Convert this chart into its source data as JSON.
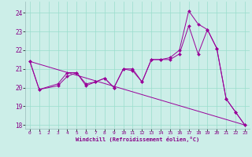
{
  "xlabel": "Windchill (Refroidissement éolien,°C)",
  "bg_color": "#cceee8",
  "grid_color": "#99ddcc",
  "line_color": "#990099",
  "xlim": [
    -0.5,
    23.5
  ],
  "ylim": [
    17.8,
    24.6
  ],
  "yticks": [
    18,
    19,
    20,
    21,
    22,
    23,
    24
  ],
  "xticks": [
    0,
    1,
    2,
    3,
    4,
    5,
    6,
    7,
    8,
    9,
    10,
    11,
    12,
    13,
    14,
    15,
    16,
    17,
    18,
    19,
    20,
    21,
    22,
    23
  ],
  "lines": [
    {
      "x": [
        0,
        1,
        3,
        4,
        5,
        6,
        7,
        8,
        9,
        10,
        11,
        12,
        13,
        14,
        15,
        16,
        17,
        18,
        19,
        20,
        21,
        22,
        23
      ],
      "y": [
        21.4,
        19.9,
        20.1,
        20.6,
        20.8,
        20.1,
        20.3,
        20.5,
        20.0,
        21.0,
        20.9,
        20.3,
        21.5,
        21.5,
        21.5,
        21.8,
        23.3,
        21.8,
        23.1,
        22.1,
        19.4,
        18.7,
        18.0
      ]
    },
    {
      "x": [
        0,
        1,
        3,
        4,
        5,
        6,
        7,
        8,
        9,
        10,
        11,
        12,
        13,
        14,
        15,
        16,
        17,
        18,
        19,
        20,
        21,
        22,
        23
      ],
      "y": [
        21.4,
        19.9,
        20.2,
        20.8,
        20.8,
        20.2,
        20.3,
        20.5,
        20.0,
        21.0,
        21.0,
        20.3,
        21.5,
        21.5,
        21.6,
        22.0,
        24.1,
        23.4,
        23.1,
        22.1,
        19.4,
        18.7,
        18.0
      ]
    },
    {
      "x": [
        0,
        23
      ],
      "y": [
        21.4,
        18.0
      ]
    }
  ]
}
